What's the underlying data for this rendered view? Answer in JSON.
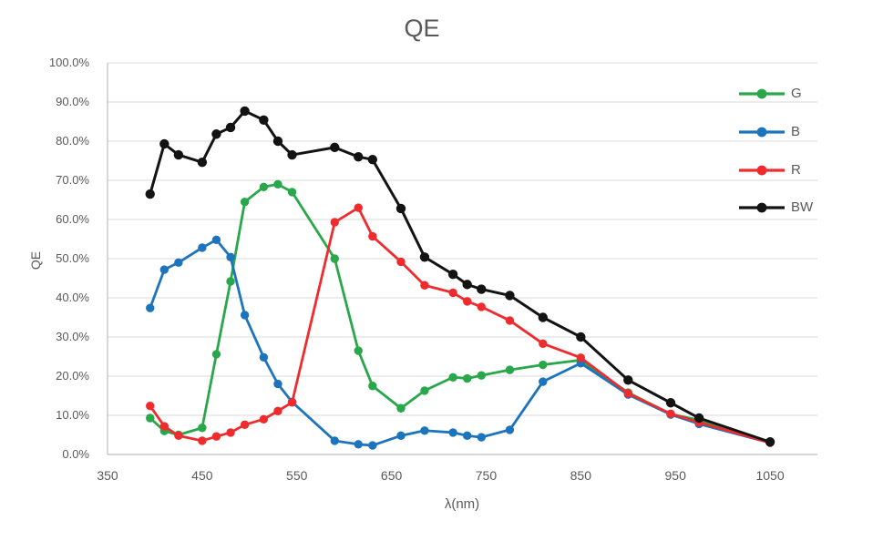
{
  "chart": {
    "title": "QE",
    "x_axis_label": "λ(nm)",
    "y_axis_label": "QE",
    "x_ticks": [
      350,
      450,
      550,
      650,
      750,
      850,
      950,
      1050
    ],
    "y_ticks": [
      "0.0%",
      "10.0%",
      "20.0%",
      "30.0%",
      "40.0%",
      "50.0%",
      "60.0%",
      "70.0%",
      "80.0%",
      "90.0%",
      "100.0%"
    ]
  },
  "chart_data": {
    "type": "line",
    "title": "QE",
    "xlabel": "λ(nm)",
    "ylabel": "QE",
    "xlim": [
      350,
      1100
    ],
    "ylim_percent": [
      0,
      100
    ],
    "grid": true,
    "markers": true,
    "legend_position": "right-top",
    "x": [
      395,
      410,
      425,
      450,
      465,
      480,
      495,
      515,
      530,
      545,
      590,
      615,
      630,
      660,
      685,
      715,
      730,
      745,
      775,
      810,
      850,
      900,
      945,
      975,
      1050
    ],
    "series": [
      {
        "name": "G",
        "color": "#28A74B",
        "values": [
          9.3,
          6.0,
          5.0,
          6.8,
          25.6,
          44.2,
          64.5,
          68.3,
          69.0,
          67.0,
          50.0,
          26.5,
          17.5,
          11.8,
          16.3,
          19.7,
          19.4,
          20.2,
          21.6,
          22.9,
          24.1,
          15.8,
          10.3,
          8.8,
          3.1
        ]
      },
      {
        "name": "B",
        "color": "#1C74BC",
        "values": [
          37.4,
          47.2,
          49.0,
          52.8,
          54.8,
          50.4,
          35.6,
          24.8,
          18.0,
          13.4,
          3.5,
          2.6,
          2.3,
          4.8,
          6.1,
          5.6,
          4.8,
          4.4,
          6.3,
          18.6,
          23.3,
          15.3,
          10.2,
          7.8,
          3.0
        ]
      },
      {
        "name": "R",
        "color": "#EF2B2D",
        "values": [
          12.4,
          7.2,
          4.8,
          3.5,
          4.6,
          5.6,
          7.6,
          9.0,
          11.1,
          13.3,
          59.3,
          63.0,
          55.7,
          49.2,
          43.2,
          41.3,
          39.1,
          37.7,
          34.2,
          28.3,
          24.7,
          15.6,
          10.4,
          8.2,
          3.0
        ]
      },
      {
        "name": "BW",
        "color": "#131313",
        "values": [
          66.5,
          79.3,
          76.5,
          74.6,
          81.8,
          83.5,
          87.7,
          85.4,
          80.0,
          76.5,
          78.4,
          76.0,
          75.3,
          62.8,
          50.4,
          46.0,
          43.4,
          42.2,
          40.6,
          35.0,
          30.0,
          19.0,
          13.2,
          9.3,
          3.2
        ]
      }
    ]
  },
  "colors": {
    "grid": "#D9D9D9",
    "axis": "#BFBFBF",
    "text": "#595959",
    "background": "#FFFFFF"
  }
}
